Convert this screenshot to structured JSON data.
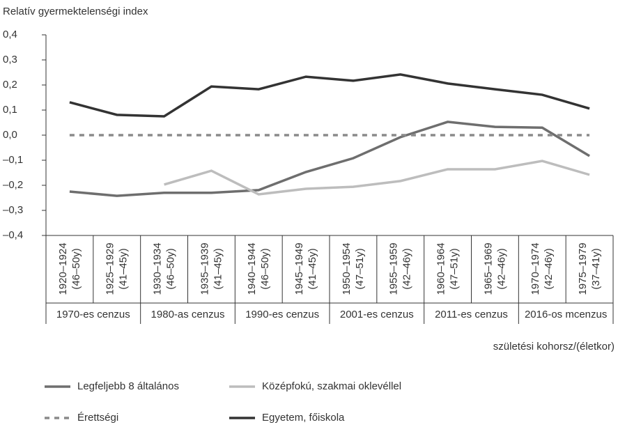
{
  "chart_data": {
    "type": "line",
    "title": "Relatív gyermektelenségi index",
    "x_label": "születési kohorsz/(életkor)",
    "categories": [
      "1920–1924",
      "1925–1929",
      "1930–1934",
      "1935–1939",
      "1940–1944",
      "1945–1949",
      "1950–1954",
      "1955–1959",
      "1960–1964",
      "1965–1969",
      "1970–1974",
      "1975–1979"
    ],
    "category_ages": [
      "(46–50y)",
      "(41–45y)",
      "(46–50y)",
      "(41–45y)",
      "(46–50y)",
      "(41–45y)",
      "(47–51y)",
      "(42–46y)",
      "(47–51y)",
      "(42–46y)",
      "(42–46y)",
      "(37–41y)"
    ],
    "census_groups": [
      "1970-es cenzus",
      "1980-as cenzus",
      "1990-es cenzus",
      "2001-es cenzus",
      "2011-es cenzus",
      "2016-os mcenzus"
    ],
    "ylim": [
      -0.4,
      0.4
    ],
    "yticks": [
      {
        "value": 0.4,
        "label": "0,4"
      },
      {
        "value": 0.3,
        "label": "0,3"
      },
      {
        "value": 0.2,
        "label": "0,2"
      },
      {
        "value": 0.1,
        "label": "0,1"
      },
      {
        "value": 0,
        "label": "0,0"
      },
      {
        "value": -0.1,
        "label": "–0,1"
      },
      {
        "value": -0.2,
        "label": "–0,2"
      },
      {
        "value": -0.3,
        "label": "–0,3"
      },
      {
        "value": -0.4,
        "label": "–0,4"
      }
    ],
    "series": [
      {
        "name": "Legfeljebb 8 általános",
        "color": "#6e6e6e",
        "values": [
          -0.225,
          -0.242,
          -0.23,
          -0.23,
          -0.219,
          -0.147,
          -0.092,
          -0.008,
          0.053,
          0.033,
          0.03,
          -0.083
        ]
      },
      {
        "name": "Középfokú, szakmai oklevéllel",
        "color": "#bdbdbd",
        "values": [
          null,
          null,
          -0.197,
          -0.142,
          -0.236,
          -0.214,
          -0.206,
          -0.183,
          -0.136,
          -0.136,
          -0.103,
          -0.158
        ]
      },
      {
        "name": "Érettségi",
        "color": "#8a8a8a",
        "dashed": true,
        "values": [
          0,
          0,
          0,
          0,
          0,
          0,
          0,
          0,
          0,
          0,
          0,
          0
        ]
      },
      {
        "name": "Egyetem, főiskola",
        "color": "#333333",
        "values": [
          0.131,
          0.081,
          0.075,
          0.194,
          0.183,
          0.233,
          0.217,
          0.242,
          0.206,
          0.183,
          0.161,
          0.106
        ]
      }
    ]
  }
}
